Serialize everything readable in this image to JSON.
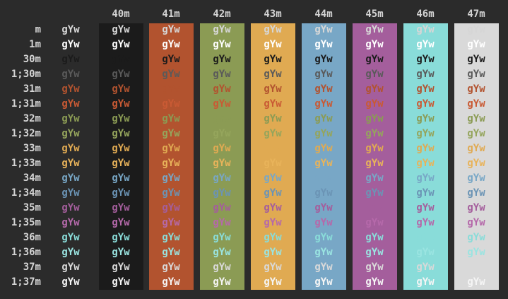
{
  "sample_text": "gYw",
  "bg_headers": [
    "40m",
    "41m",
    "42m",
    "43m",
    "44m",
    "45m",
    "46m",
    "47m"
  ],
  "bg_colors": [
    "#1b1b1b",
    "#b2532f",
    "#8b9b54",
    "#e0aa52",
    "#78a7c6",
    "#a45e9c",
    "#89dcd9",
    "#d9d9d9"
  ],
  "rows": [
    {
      "label": "m",
      "fg": "default"
    },
    {
      "label": "1m",
      "fg": "bold-default"
    },
    {
      "label": "30m",
      "fg": "black"
    },
    {
      "label": "1;30m",
      "fg": "bold-black"
    },
    {
      "label": "31m",
      "fg": "red"
    },
    {
      "label": "1;31m",
      "fg": "bold-red"
    },
    {
      "label": "32m",
      "fg": "green"
    },
    {
      "label": "1;32m",
      "fg": "bold-green"
    },
    {
      "label": "33m",
      "fg": "yellow"
    },
    {
      "label": "1;33m",
      "fg": "bold-yellow"
    },
    {
      "label": "34m",
      "fg": "blue"
    },
    {
      "label": "1;34m",
      "fg": "bold-blue"
    },
    {
      "label": "35m",
      "fg": "magenta"
    },
    {
      "label": "1;35m",
      "fg": "bold-magenta"
    },
    {
      "label": "36m",
      "fg": "cyan"
    },
    {
      "label": "1;36m",
      "fg": "bold-cyan"
    },
    {
      "label": "37m",
      "fg": "white"
    },
    {
      "label": "1;37m",
      "fg": "bold-white"
    }
  ],
  "fg_colors": {
    "default": "#d6d6d6",
    "bold-default": "#ffffff",
    "black": "#1b1b1b",
    "bold-black": "#5a5a5a",
    "red": "#b2532f",
    "bold-red": "#c95a34",
    "green": "#8b9b54",
    "bold-green": "#95a55c",
    "yellow": "#e0aa52",
    "bold-yellow": "#e8b35a",
    "blue": "#78a7c6",
    "bold-blue": "#6b94b5",
    "magenta": "#a45e9c",
    "bold-magenta": "#b569aa",
    "cyan": "#89dcd9",
    "bold-cyan": "#9ae4e1",
    "white": "#d9d9d9",
    "bold-white": "#f5f5f5"
  },
  "colors": {
    "background": "#2b2b2b",
    "header_text": "#d4d4d4"
  }
}
